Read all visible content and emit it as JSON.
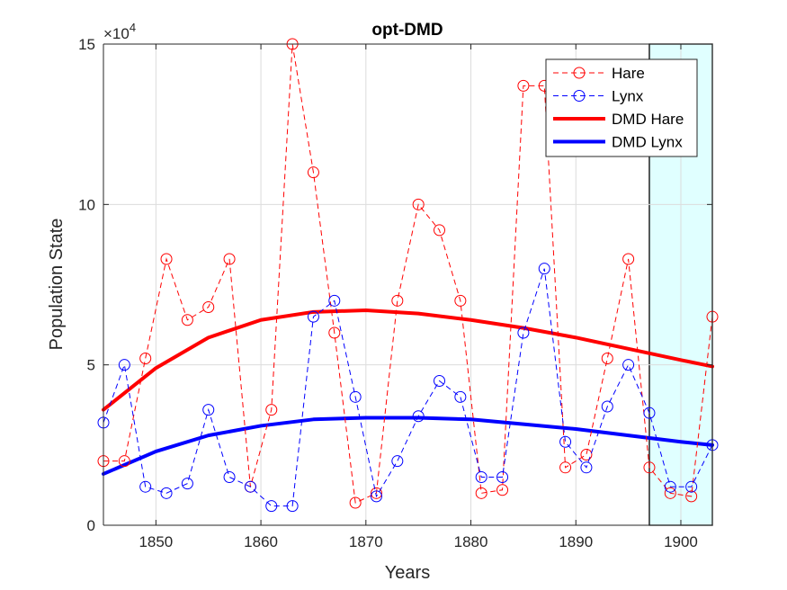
{
  "chart_data": {
    "type": "line",
    "title": "opt-DMD",
    "xlabel": "Years",
    "ylabel": "Population State",
    "y_exponent_label": "×10",
    "y_exponent_power": "4",
    "xlim": [
      1845,
      1903
    ],
    "ylim": [
      0,
      150000
    ],
    "x_ticks": [
      1850,
      1860,
      1870,
      1880,
      1890,
      1900
    ],
    "y_ticks": [
      0,
      50000,
      100000,
      150000
    ],
    "y_tick_labels": [
      "0",
      "5",
      "10",
      "15"
    ],
    "grid": true,
    "legend_position": "top-right",
    "shaded_region": {
      "x_start": 1897,
      "x_end": 1903,
      "color": "#e0ffff"
    },
    "x": [
      1845,
      1847,
      1849,
      1851,
      1853,
      1855,
      1857,
      1859,
      1861,
      1863,
      1865,
      1867,
      1869,
      1871,
      1873,
      1875,
      1877,
      1879,
      1881,
      1883,
      1885,
      1887,
      1889,
      1891,
      1893,
      1895,
      1897,
      1899,
      1901,
      1903
    ],
    "series": [
      {
        "name": "Hare",
        "style": "dashed-circle",
        "color": "#ff0000",
        "values": [
          20000,
          20000,
          52000,
          83000,
          64000,
          68000,
          83000,
          12000,
          36000,
          150000,
          110000,
          60000,
          7000,
          10000,
          70000,
          100000,
          92000,
          70000,
          10000,
          11000,
          137000,
          137000,
          18000,
          22000,
          52000,
          83000,
          18000,
          10000,
          9000,
          65000
        ]
      },
      {
        "name": "Lynx",
        "style": "dashed-circle",
        "color": "#0000ff",
        "values": [
          32000,
          50000,
          12000,
          10000,
          13000,
          36000,
          15000,
          12000,
          6000,
          6000,
          65000,
          70000,
          40000,
          9000,
          20000,
          34000,
          45000,
          40000,
          15000,
          15000,
          60000,
          80000,
          26000,
          18000,
          37000,
          50000,
          35000,
          12000,
          12000,
          25000
        ]
      },
      {
        "name": "DMD Hare",
        "style": "thick-solid",
        "color": "#ff0000",
        "x": [
          1845,
          1850,
          1855,
          1860,
          1865,
          1870,
          1875,
          1880,
          1885,
          1890,
          1895,
          1900,
          1903
        ],
        "values": [
          36000,
          49000,
          58500,
          64000,
          66500,
          67000,
          66000,
          64000,
          61500,
          58500,
          55000,
          51500,
          49500
        ]
      },
      {
        "name": "DMD Lynx",
        "style": "thick-solid",
        "color": "#0000ff",
        "x": [
          1845,
          1850,
          1855,
          1860,
          1865,
          1870,
          1875,
          1880,
          1885,
          1890,
          1895,
          1900,
          1903
        ],
        "values": [
          16000,
          23000,
          28000,
          31000,
          33000,
          33500,
          33500,
          33000,
          31500,
          30000,
          28000,
          26000,
          25000
        ]
      }
    ]
  }
}
